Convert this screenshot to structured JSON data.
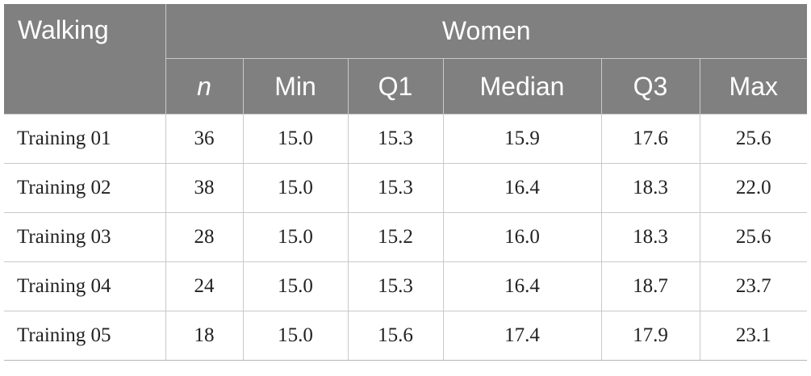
{
  "table": {
    "corner_label": "Walking",
    "group_label": "Women",
    "columns": [
      "n",
      "Min",
      "Q1",
      "Median",
      "Q3",
      "Max"
    ],
    "rows": [
      {
        "label": "Training 01",
        "values": [
          "36",
          "15.0",
          "15.3",
          "15.9",
          "17.6",
          "25.6"
        ]
      },
      {
        "label": "Training 02",
        "values": [
          "38",
          "15.0",
          "15.3",
          "16.4",
          "18.3",
          "22.0"
        ]
      },
      {
        "label": "Training 03",
        "values": [
          "28",
          "15.0",
          "15.2",
          "16.0",
          "18.3",
          "25.6"
        ]
      },
      {
        "label": "Training 04",
        "values": [
          "24",
          "15.0",
          "15.3",
          "16.4",
          "18.7",
          "23.7"
        ]
      },
      {
        "label": "Training 05",
        "values": [
          "18",
          "15.0",
          "15.6",
          "17.4",
          "17.9",
          "23.1"
        ]
      }
    ]
  },
  "colors": {
    "header_bg": "#808080",
    "header_text": "#ffffff",
    "grid": "#c9c9c9"
  }
}
